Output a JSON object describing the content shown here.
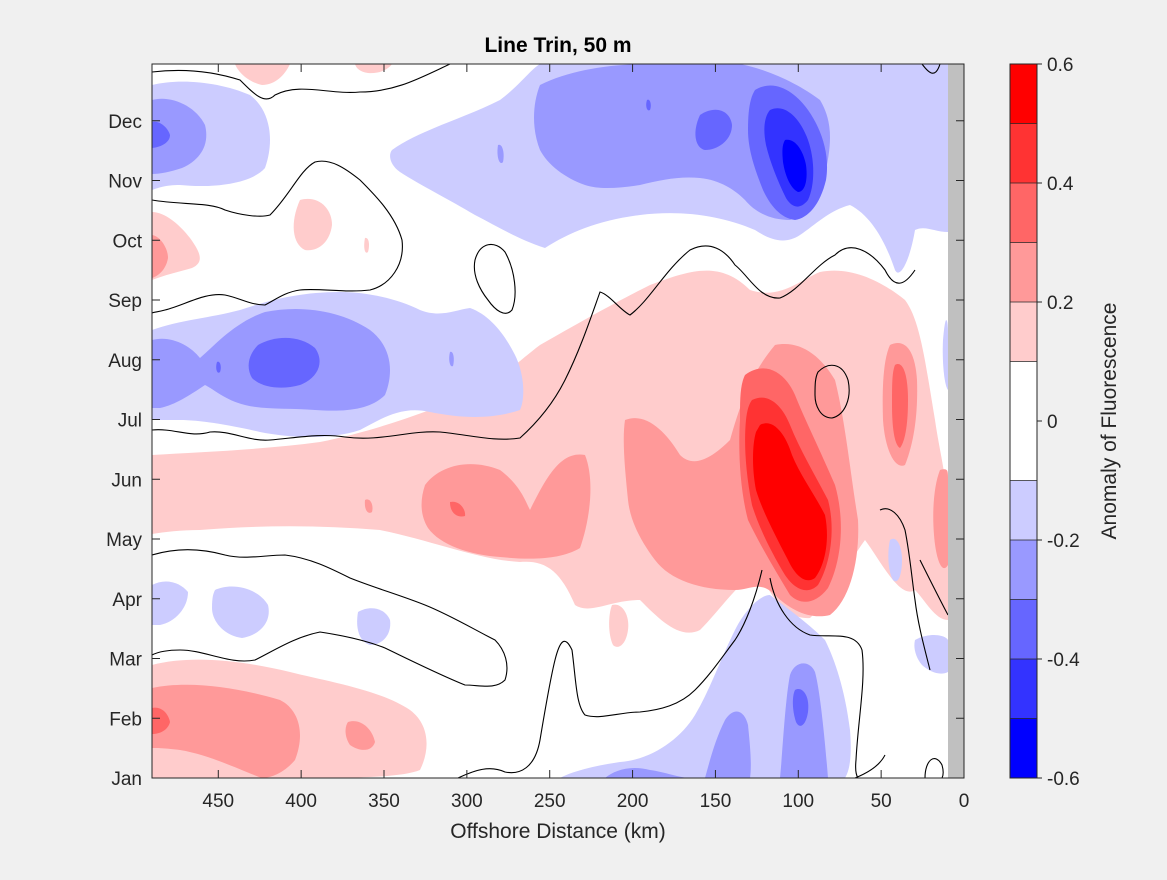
{
  "chart_data": {
    "type": "heatmap",
    "title": "Line Trin, 50 m",
    "xlabel": "Offshore Distance (km)",
    "ylabel": "",
    "colorbar_label": "Anomaly of Fluorescence",
    "xlim": [
      490,
      0
    ],
    "x_ticks": [
      450,
      400,
      350,
      300,
      250,
      200,
      150,
      100,
      50,
      0
    ],
    "y_ticks": [
      "Jan",
      "Feb",
      "Mar",
      "Apr",
      "May",
      "Jun",
      "Jul",
      "Aug",
      "Sep",
      "Oct",
      "Nov",
      "Dec"
    ],
    "ylim_months": [
      1,
      12.95
    ],
    "colorbar_range": [
      -0.6,
      0.6
    ],
    "colorbar_ticks": [
      -0.6,
      -0.4,
      -0.2,
      0,
      0.2,
      0.4,
      0.6
    ],
    "contour_levels": [
      -0.6,
      -0.5,
      -0.4,
      -0.3,
      -0.2,
      -0.1,
      0.1,
      0.2,
      0.3,
      0.4,
      0.5,
      0.6
    ],
    "level_colors": [
      "#0000ff",
      "#3333ff",
      "#6666ff",
      "#9999ff",
      "#ccccff",
      "#ffffff",
      "#ffcccc",
      "#ff9999",
      "#ff6666",
      "#ff3333",
      "#ff0000"
    ],
    "zero_contour": true,
    "masked_region_km": [
      0,
      8
    ],
    "masked_color": "#c0c0c0",
    "features": [
      {
        "x_km": 100,
        "month": 5.3,
        "value": 0.6
      },
      {
        "x_km": 100,
        "month": 11.8,
        "value": -0.5
      },
      {
        "x_km": 400,
        "month": 8.0,
        "value": -0.35
      },
      {
        "x_km": 480,
        "month": 2.0,
        "value": 0.3
      },
      {
        "x_km": 300,
        "month": 5.5,
        "value": 0.3
      },
      {
        "x_km": 40,
        "month": 7.7,
        "value": 0.3
      },
      {
        "x_km": 100,
        "month": 1.8,
        "value": -0.3
      },
      {
        "x_km": 480,
        "month": 11.9,
        "value": -0.3
      }
    ]
  }
}
